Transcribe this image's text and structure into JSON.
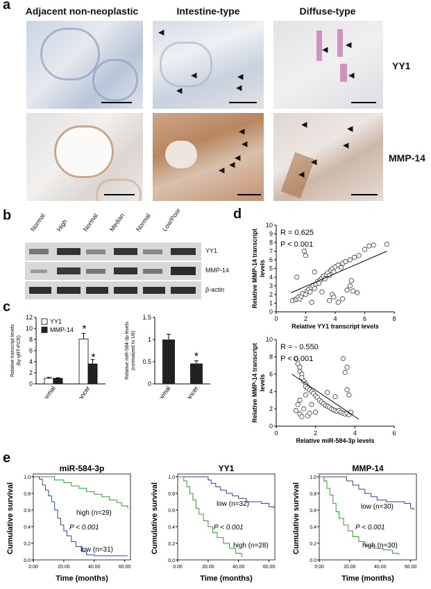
{
  "panels": {
    "a": {
      "label": "a",
      "columns": [
        "Adjacent non-neoplastic",
        "Intestine-type",
        "Diffuse-type"
      ],
      "rows": [
        "YY1",
        "MMP-14"
      ]
    },
    "b": {
      "label": "b",
      "lanes": [
        "Normal",
        "High",
        "Normal",
        "Median",
        "Normal",
        "Low/Poor"
      ],
      "bands": [
        "YY1",
        "MMP-14",
        "β-actin"
      ]
    },
    "c": {
      "label": "c",
      "left": {
        "ylabel": "Relative transcript levels\n(by qRT-PCR)",
        "legend": [
          "YY1",
          "MMP-14"
        ],
        "star": "*"
      },
      "right": {
        "ylabel": "Relative miR-584-3p levels\n(normalized to U6)",
        "star": "*"
      }
    },
    "d": {
      "label": "d",
      "top": {
        "r_text": "R = 0.625",
        "p_text": "P < 0.001"
      },
      "bottom": {
        "r_text": "R = - 0.550",
        "p_text": "P < 0.001"
      }
    },
    "e": {
      "label": "e",
      "charts": [
        {
          "title": "miR-584-3p",
          "p_text": "P < 0.001",
          "high": "high (n=29)",
          "low": "low (n=31)"
        },
        {
          "title": "YY1",
          "p_text": "P < 0.001",
          "high": "high (n=28)",
          "low": "low (n=32)"
        },
        {
          "title": "MMP-14",
          "p_text": "P < 0.001",
          "high": "high (n=30)",
          "low": "low (n=30)"
        }
      ],
      "ylabel": "Cumulative survival",
      "xlabel": "Time (months)"
    }
  },
  "chart_data": [
    {
      "type": "bar",
      "panel": "c-left",
      "categories": [
        "Normal",
        "Cancer"
      ],
      "series": [
        {
          "name": "YY1",
          "values": [
            1.0,
            8.1
          ],
          "errors": [
            0.2,
            1.0
          ]
        },
        {
          "name": "MMP-14",
          "values": [
            1.0,
            3.6
          ],
          "errors": [
            0.1,
            0.8
          ]
        }
      ],
      "ylabel": "Relative transcript levels (by qRT-PCR)",
      "ylim": [
        0,
        12
      ],
      "yticks": [
        0,
        2,
        4,
        6,
        8,
        10,
        12
      ],
      "colors": {
        "YY1": "#ffffff",
        "MMP-14": "#222222"
      }
    },
    {
      "type": "bar",
      "panel": "c-right",
      "categories": [
        "Normal",
        "Cancer"
      ],
      "values": [
        1.0,
        0.46
      ],
      "errors": [
        0.12,
        0.06
      ],
      "ylabel": "Relative miR-584-3p levels (normalized to U6)",
      "ylim": [
        0,
        1.5
      ],
      "yticks": [
        0,
        0.5,
        1,
        1.5
      ]
    },
    {
      "type": "scatter",
      "panel": "d-top",
      "xlabel": "Relative YY1 transcript levels",
      "ylabel": "Relative MMP-14 transcript levels",
      "xlim": [
        0,
        8
      ],
      "ylim": [
        0,
        10
      ],
      "xticks": [
        0,
        2,
        4,
        6,
        8
      ],
      "yticks": [
        0,
        1,
        2,
        3,
        4,
        5,
        6,
        7,
        8,
        9,
        10
      ],
      "fit": [
        [
          1.0,
          2.2
        ],
        [
          7.5,
          7.0
        ]
      ],
      "points": [
        [
          1.1,
          1.3
        ],
        [
          1.3,
          1.4
        ],
        [
          1.4,
          1.5
        ],
        [
          1.5,
          1.7
        ],
        [
          1.6,
          1.5
        ],
        [
          1.7,
          1.8
        ],
        [
          1.8,
          2.1
        ],
        [
          2.0,
          2.0
        ],
        [
          2.1,
          2.4
        ],
        [
          2.2,
          2.6
        ],
        [
          2.3,
          2.3
        ],
        [
          2.4,
          2.8
        ],
        [
          2.5,
          3.0
        ],
        [
          2.6,
          2.7
        ],
        [
          2.7,
          3.2
        ],
        [
          2.8,
          3.5
        ],
        [
          2.9,
          3.3
        ],
        [
          3.0,
          3.7
        ],
        [
          3.1,
          3.9
        ],
        [
          3.2,
          4.1
        ],
        [
          3.3,
          3.8
        ],
        [
          3.4,
          4.3
        ],
        [
          3.5,
          4.5
        ],
        [
          3.6,
          4.2
        ],
        [
          3.7,
          4.8
        ],
        [
          3.8,
          5.0
        ],
        [
          3.9,
          4.6
        ],
        [
          4.0,
          5.2
        ],
        [
          4.2,
          5.4
        ],
        [
          4.4,
          5.1
        ],
        [
          4.5,
          5.6
        ],
        [
          4.7,
          5.8
        ],
        [
          5.0,
          6.0
        ],
        [
          5.3,
          6.3
        ],
        [
          5.6,
          6.5
        ],
        [
          6.0,
          7.2
        ],
        [
          6.3,
          7.6
        ],
        [
          6.6,
          7.7
        ],
        [
          7.5,
          7.8
        ],
        [
          1.9,
          7.0
        ],
        [
          2.0,
          6.5
        ],
        [
          1.4,
          4.0
        ],
        [
          2.6,
          4.6
        ],
        [
          3.6,
          1.3
        ],
        [
          3.8,
          2.0
        ],
        [
          4.2,
          1.1
        ],
        [
          4.5,
          1.5
        ],
        [
          4.8,
          2.5
        ],
        [
          5.0,
          3.0
        ],
        [
          5.2,
          2.4
        ],
        [
          5.5,
          2.2
        ],
        [
          5.1,
          3.6
        ],
        [
          3.9,
          1.7
        ],
        [
          2.4,
          1.1
        ],
        [
          3.1,
          2.3
        ]
      ]
    },
    {
      "type": "scatter",
      "panel": "d-bottom",
      "xlabel": "Relative miR-584-3p levels",
      "ylabel": "Relative MMP-14 transcript levels",
      "xlim": [
        0,
        6
      ],
      "ylim": [
        0,
        10
      ],
      "xticks": [
        0,
        2,
        4,
        6
      ],
      "yticks": [
        0,
        2,
        4,
        6,
        8,
        10
      ],
      "fit": [
        [
          0.8,
          6.0
        ],
        [
          4.2,
          0.8
        ]
      ],
      "points": [
        [
          1.0,
          7.8
        ],
        [
          1.1,
          7.2
        ],
        [
          1.2,
          6.8
        ],
        [
          1.2,
          6.3
        ],
        [
          1.3,
          6.0
        ],
        [
          1.3,
          5.6
        ],
        [
          1.4,
          5.2
        ],
        [
          1.5,
          4.9
        ],
        [
          1.5,
          4.6
        ],
        [
          1.6,
          4.4
        ],
        [
          1.7,
          4.2
        ],
        [
          1.8,
          4.0
        ],
        [
          1.9,
          3.8
        ],
        [
          2.0,
          3.5
        ],
        [
          2.1,
          3.3
        ],
        [
          2.2,
          3.0
        ],
        [
          2.3,
          2.8
        ],
        [
          2.4,
          2.6
        ],
        [
          2.5,
          2.4
        ],
        [
          2.6,
          2.3
        ],
        [
          2.7,
          2.2
        ],
        [
          2.8,
          2.0
        ],
        [
          2.9,
          1.9
        ],
        [
          3.0,
          1.8
        ],
        [
          3.1,
          1.7
        ],
        [
          3.2,
          1.8
        ],
        [
          3.3,
          1.6
        ],
        [
          3.4,
          1.5
        ],
        [
          3.5,
          1.4
        ],
        [
          3.6,
          1.5
        ],
        [
          3.7,
          1.3
        ],
        [
          3.8,
          1.6
        ],
        [
          1.0,
          1.8
        ],
        [
          1.2,
          1.4
        ],
        [
          1.4,
          2.0
        ],
        [
          1.6,
          1.2
        ],
        [
          1.8,
          2.5
        ],
        [
          2.0,
          1.6
        ],
        [
          1.2,
          3.0
        ],
        [
          1.5,
          3.6
        ],
        [
          1.1,
          2.5
        ],
        [
          1.3,
          1.1
        ],
        [
          3.4,
          7.8
        ],
        [
          3.6,
          6.8
        ],
        [
          3.5,
          6.2
        ],
        [
          3.6,
          4.2
        ],
        [
          3.7,
          3.6
        ],
        [
          2.6,
          3.9
        ],
        [
          3.0,
          3.4
        ],
        [
          1.7,
          1.5
        ]
      ]
    },
    {
      "type": "line",
      "panel": "e-1",
      "xlabel": "Time (months)",
      "ylabel": "Cumulative survival",
      "xlim": [
        0,
        60
      ],
      "ylim": [
        0,
        1
      ],
      "xticks": [
        "0.00",
        "20.00",
        "40.00",
        "60.00"
      ],
      "yticks": [
        "0.0",
        "0.2",
        "0.4",
        "0.6",
        "0.8",
        "1.0"
      ],
      "series": [
        {
          "name": "high (n=29)",
          "color": "#2e9e2e",
          "points": [
            [
              0,
              1.0
            ],
            [
              12,
              1.0
            ],
            [
              14,
              0.96
            ],
            [
              20,
              0.93
            ],
            [
              25,
              0.89
            ],
            [
              30,
              0.86
            ],
            [
              35,
              0.82
            ],
            [
              40,
              0.79
            ],
            [
              45,
              0.76
            ],
            [
              50,
              0.72
            ],
            [
              55,
              0.69
            ],
            [
              58,
              0.65
            ],
            [
              62,
              0.62
            ]
          ]
        },
        {
          "name": "low (n=31)",
          "color": "#2b3fa8",
          "points": [
            [
              0,
              1.0
            ],
            [
              4,
              0.97
            ],
            [
              6,
              0.9
            ],
            [
              8,
              0.84
            ],
            [
              10,
              0.77
            ],
            [
              12,
              0.7
            ],
            [
              14,
              0.6
            ],
            [
              16,
              0.5
            ],
            [
              18,
              0.42
            ],
            [
              20,
              0.35
            ],
            [
              22,
              0.29
            ],
            [
              25,
              0.22
            ],
            [
              28,
              0.16
            ],
            [
              32,
              0.1
            ],
            [
              35,
              0.06
            ],
            [
              40,
              0.05
            ],
            [
              62,
              0.05
            ]
          ]
        }
      ]
    },
    {
      "type": "line",
      "panel": "e-2",
      "xlabel": "Time (months)",
      "ylabel": "Cumulative survival",
      "xlim": [
        0,
        60
      ],
      "ylim": [
        0,
        1
      ],
      "xticks": [
        "0.00",
        "20.00",
        "40.00",
        "60.00"
      ],
      "yticks": [
        "0.0",
        "0.2",
        "0.4",
        "0.6",
        "0.8",
        "1.0"
      ],
      "series": [
        {
          "name": "low (n=32)",
          "color": "#2b3fa8",
          "points": [
            [
              0,
              1.0
            ],
            [
              18,
              1.0
            ],
            [
              20,
              0.96
            ],
            [
              22,
              0.92
            ],
            [
              25,
              0.88
            ],
            [
              28,
              0.84
            ],
            [
              32,
              0.8
            ],
            [
              36,
              0.77
            ],
            [
              40,
              0.74
            ],
            [
              45,
              0.7
            ],
            [
              50,
              0.7
            ],
            [
              55,
              0.68
            ],
            [
              60,
              0.64
            ],
            [
              63,
              0.62
            ]
          ]
        },
        {
          "name": "high (n=28)",
          "color": "#2e9e2e",
          "points": [
            [
              0,
              1.0
            ],
            [
              4,
              0.95
            ],
            [
              6,
              0.88
            ],
            [
              8,
              0.8
            ],
            [
              10,
              0.72
            ],
            [
              12,
              0.62
            ],
            [
              14,
              0.55
            ],
            [
              17,
              0.47
            ],
            [
              20,
              0.4
            ],
            [
              23,
              0.33
            ],
            [
              26,
              0.27
            ],
            [
              30,
              0.2
            ],
            [
              34,
              0.14
            ],
            [
              38,
              0.08
            ],
            [
              42,
              0.03
            ]
          ]
        }
      ]
    },
    {
      "type": "line",
      "panel": "e-3",
      "xlabel": "Time (months)",
      "ylabel": "Cumulative survival",
      "xlim": [
        0,
        60
      ],
      "ylim": [
        0,
        1
      ],
      "xticks": [
        "0.00",
        "20.00",
        "40.00",
        "60.00"
      ],
      "yticks": [
        "0.0",
        "0.2",
        "0.4",
        "0.6",
        "0.8",
        "1.0"
      ],
      "series": [
        {
          "name": "low (n=30)",
          "color": "#2b3fa8",
          "points": [
            [
              0,
              1.0
            ],
            [
              16,
              1.0
            ],
            [
              18,
              0.95
            ],
            [
              22,
              0.9
            ],
            [
              26,
              0.85
            ],
            [
              30,
              0.8
            ],
            [
              34,
              0.76
            ],
            [
              38,
              0.72
            ],
            [
              44,
              0.7
            ],
            [
              50,
              0.7
            ],
            [
              56,
              0.68
            ],
            [
              60,
              0.62
            ],
            [
              62,
              0.6
            ]
          ]
        },
        {
          "name": "high (n=30)",
          "color": "#2e9e2e",
          "points": [
            [
              0,
              1.0
            ],
            [
              3,
              0.95
            ],
            [
              5,
              0.86
            ],
            [
              7,
              0.78
            ],
            [
              9,
              0.68
            ],
            [
              11,
              0.58
            ],
            [
              13,
              0.5
            ],
            [
              16,
              0.42
            ],
            [
              19,
              0.35
            ],
            [
              22,
              0.28
            ],
            [
              26,
              0.22
            ],
            [
              30,
              0.17
            ],
            [
              36,
              0.14
            ],
            [
              42,
              0.12
            ],
            [
              48,
              0.08
            ],
            [
              52,
              0.06
            ]
          ]
        }
      ]
    }
  ]
}
